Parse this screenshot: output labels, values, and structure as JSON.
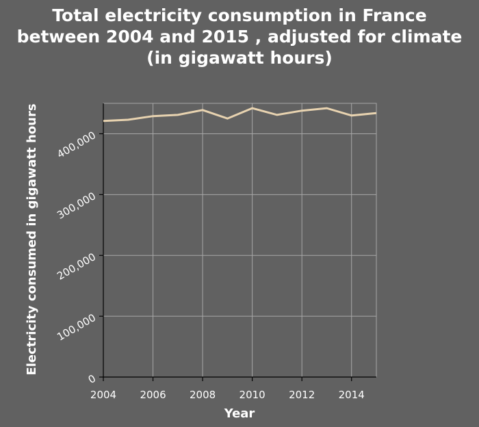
{
  "chart_data": {
    "type": "line",
    "title_lines": [
      "Total electricity consumption in France",
      "between 2004 and 2015 , adjusted for climate",
      "(in gigawatt hours)"
    ],
    "xlabel": "Year",
    "ylabel": "Electricity consumed in gigawatt hours",
    "x_ticks": [
      2004,
      2006,
      2008,
      2010,
      2012,
      2014
    ],
    "x_tick_labels": [
      "2004",
      "2006",
      "2008",
      "2010",
      "2012",
      "2014"
    ],
    "y_ticks": [
      0,
      100000,
      200000,
      300000,
      400000
    ],
    "y_tick_labels": [
      "0",
      "100,000",
      "200,000",
      "300,000",
      "400,000"
    ],
    "xlim": [
      2004,
      2015
    ],
    "ylim": [
      0,
      450000
    ],
    "grid": true,
    "line_color": "#e8d3b0",
    "series": [
      {
        "x": [
          2004,
          2005,
          2006,
          2007,
          2008,
          2009,
          2010,
          2011,
          2012,
          2013,
          2014,
          2015
        ],
        "values": [
          421000,
          423000,
          429000,
          431000,
          439000,
          425000,
          442000,
          431000,
          438000,
          442000,
          430000,
          434000
        ]
      }
    ]
  }
}
